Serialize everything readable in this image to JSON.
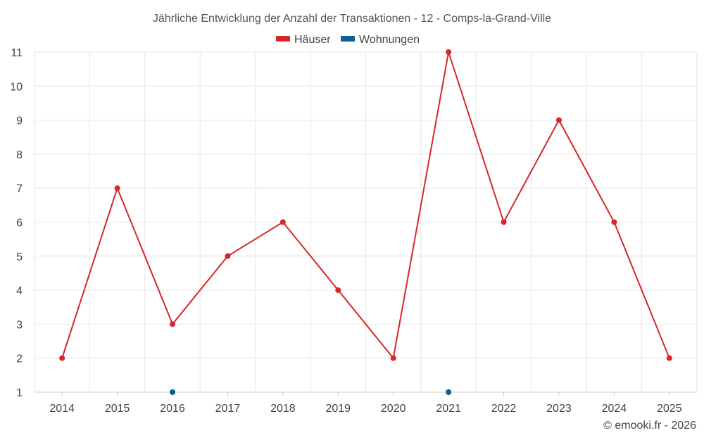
{
  "chart_data": {
    "type": "line",
    "title": "Jährliche Entwicklung der Anzahl der Transaktionen - 12 - Comps-la-Grand-Ville",
    "categories": [
      "2014",
      "2015",
      "2016",
      "2017",
      "2018",
      "2019",
      "2020",
      "2021",
      "2022",
      "2023",
      "2024",
      "2025"
    ],
    "series": [
      {
        "name": "Häuser",
        "color": "#d62728",
        "line": true,
        "values": [
          2,
          7,
          3,
          5,
          6,
          4,
          2,
          11,
          6,
          9,
          6,
          2
        ]
      },
      {
        "name": "Wohnungen",
        "color": "#0a5f95",
        "line": false,
        "values": [
          null,
          null,
          1,
          null,
          null,
          null,
          null,
          1,
          null,
          null,
          null,
          null
        ]
      }
    ],
    "ylim": [
      1,
      11
    ],
    "yticks": [
      1,
      2,
      3,
      4,
      5,
      6,
      7,
      8,
      9,
      10,
      11
    ],
    "xlabel": "",
    "ylabel": "",
    "grid": true,
    "legend_position": "top-center"
  },
  "credit": "© emooki.fr - 2026"
}
